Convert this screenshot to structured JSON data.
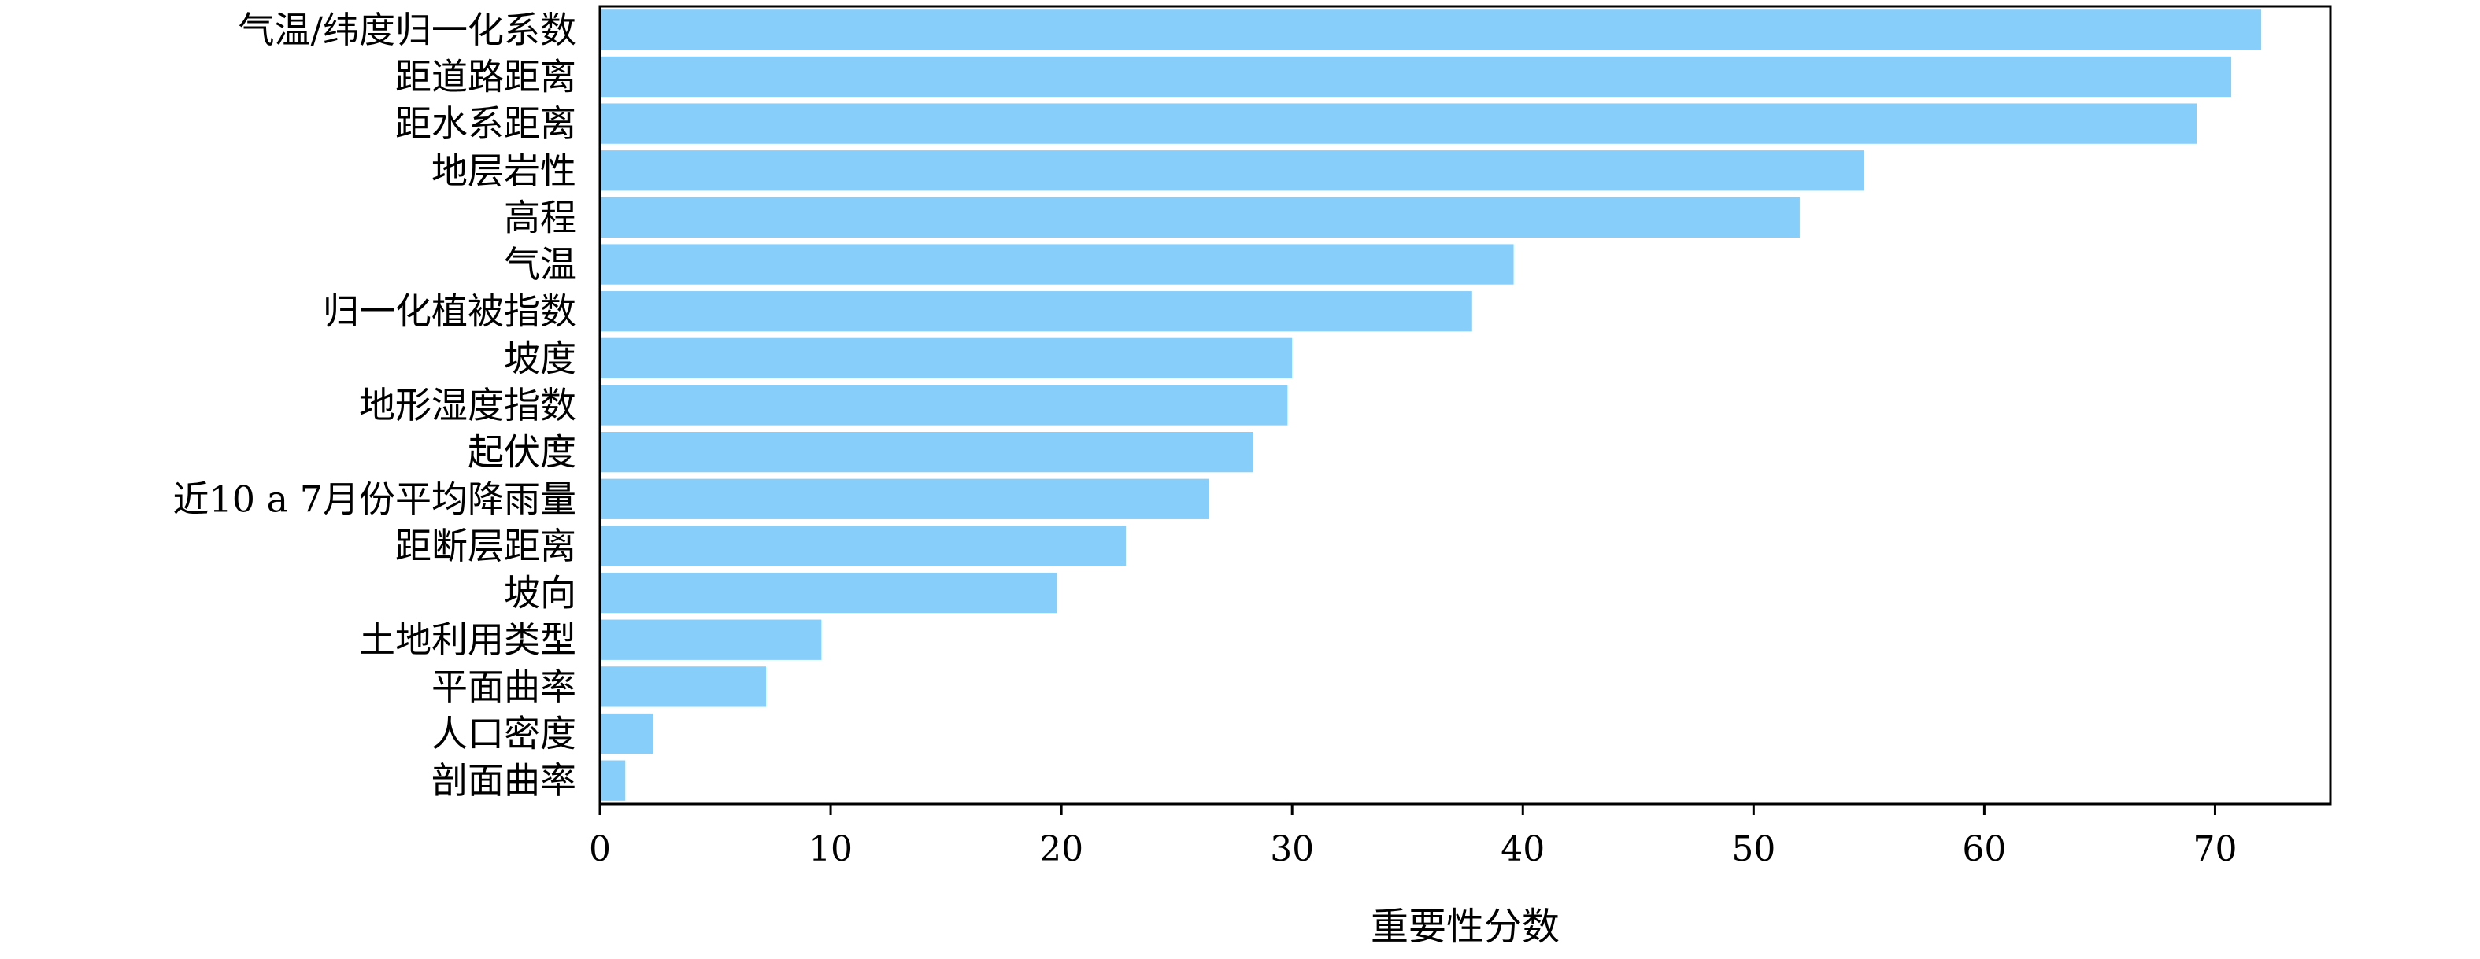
{
  "chart_data": {
    "type": "bar",
    "orientation": "horizontal",
    "categories": [
      "气温/纬度归一化系数",
      "距道路距离",
      "距水系距离",
      "地层岩性",
      "高程",
      "气温",
      "归一化植被指数",
      "坡度",
      "地形湿度指数",
      "起伏度",
      "近10 a 7月份平均降雨量",
      "距断层距离",
      "坡向",
      "土地利用类型",
      "平面曲率",
      "人口密度",
      "剖面曲率"
    ],
    "values": [
      72.0,
      70.7,
      69.2,
      54.8,
      52.0,
      39.6,
      37.8,
      30.0,
      29.8,
      28.3,
      26.4,
      22.8,
      19.8,
      9.6,
      7.2,
      2.3,
      1.1
    ],
    "xlabel": "重要性分数",
    "ylabel": "",
    "xlim": [
      0,
      75
    ],
    "xticks": [
      0,
      10,
      20,
      30,
      40,
      50,
      60,
      70
    ],
    "grid": false,
    "bar_color": "#87CEFA"
  }
}
